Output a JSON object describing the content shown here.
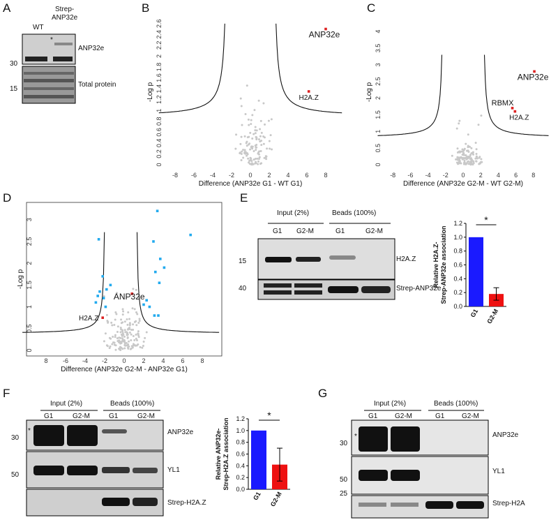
{
  "panels": {
    "A": {
      "label": "A",
      "lanes": [
        "WT",
        "Strep-\nANP32e"
      ],
      "mw": [
        "30",
        "15"
      ],
      "rows": [
        "ANP32e",
        "Total protein"
      ],
      "asterisk": "*"
    },
    "B": {
      "label": "B",
      "xlabel": "Difference (ANP32e G1 - WT G1)",
      "ylabel": "-Log p",
      "xticks": [
        "-8",
        "-6",
        "-4",
        "-2",
        "0",
        "2",
        "4",
        "6",
        "8"
      ],
      "yticks": [
        "0",
        "0.2",
        "0.4",
        "0.6",
        "0.8",
        "1",
        "1.2",
        "1.4",
        "1.6",
        "1.8",
        "2",
        "2.2",
        "2.4",
        "2.6"
      ],
      "highlights": [
        {
          "name": "ANP32e",
          "x": 8,
          "y": 2.5
        },
        {
          "name": "H2A.Z",
          "x": 6.2,
          "y": 1.35
        }
      ]
    },
    "C": {
      "label": "C",
      "xlabel": "Difference (ANP32e G2-M - WT G2-M)",
      "ylabel": "-Log p",
      "xticks": [
        "-8",
        "-6",
        "-4",
        "-2",
        "0",
        "2",
        "4",
        "6",
        "8"
      ],
      "yticks": [
        "0",
        "0.5",
        "1",
        "1.5",
        "2",
        "2.5",
        "3",
        "3.5",
        "4"
      ],
      "highlights": [
        {
          "name": "ANP32e",
          "x": 8.1,
          "y": 2.8
        },
        {
          "name": "RBMX",
          "x": 5.6,
          "y": 1.7
        },
        {
          "name": "H2A.Z",
          "x": 5.9,
          "y": 1.6
        }
      ]
    },
    "D": {
      "label": "D",
      "xlabel": "Difference (ANP32e G2-M - ANP32e G1)",
      "ylabel": "-Log p",
      "xticks": [
        "8",
        "-6",
        "-4",
        "-2",
        "0",
        "2",
        "4",
        "6",
        "8"
      ],
      "yticks": [
        "0",
        "0.5",
        "1",
        "1.5",
        "2",
        "2.5",
        "3"
      ],
      "highlights": [
        {
          "name": "ANP32e",
          "x": 0.8,
          "y": 1.3
        },
        {
          "name": "H2A.Z",
          "x": -2.2,
          "y": 0.75
        }
      ]
    },
    "E": {
      "label": "E",
      "groups": [
        "Input (2%)",
        "Beads (100%)"
      ],
      "lanes": [
        "G1",
        "G2-M",
        "G1",
        "G2-M"
      ],
      "mw": [
        "15",
        "40"
      ],
      "rows": [
        "H2A.Z",
        "Strep-ANP32e"
      ]
    },
    "F": {
      "label": "F",
      "groups": [
        "Input (2%)",
        "Beads (100%)"
      ],
      "lanes": [
        "G1",
        "G2-M",
        "G1",
        "G2-M"
      ],
      "mw": [
        "30",
        "50"
      ],
      "rows": [
        "ANP32e",
        "YL1",
        "Strep-H2A.Z"
      ],
      "asterisk": "*"
    },
    "G": {
      "label": "G",
      "groups": [
        "Input (2%)",
        "Beads (100%)"
      ],
      "lanes": [
        "G1",
        "G2-M",
        "G1",
        "G2-M"
      ],
      "mw": [
        "30",
        "50",
        "25"
      ],
      "rows": [
        "ANP32e",
        "YL1",
        "Strep-H2A"
      ],
      "asterisk": "*"
    }
  },
  "chart_data": [
    {
      "id": "E-bar",
      "type": "bar",
      "categories": [
        "G1",
        "G2-M"
      ],
      "values": [
        1.0,
        0.18
      ],
      "errors": [
        0,
        0.09
      ],
      "colors": [
        "#1a1aff",
        "#ee1111"
      ],
      "ylabel": "Relative H2A.Z-\nStrep-ANP32e association",
      "ylim": [
        0,
        1.2
      ],
      "yticks": [
        "0.0",
        "0.2",
        "0.4",
        "0.6",
        "0.8",
        "1.0",
        "1.2"
      ],
      "significance": "*"
    },
    {
      "id": "F-bar",
      "type": "bar",
      "categories": [
        "G1",
        "G2-M"
      ],
      "values": [
        1.0,
        0.42
      ],
      "errors": [
        0,
        0.28
      ],
      "colors": [
        "#1a1aff",
        "#ee1111"
      ],
      "ylabel": "Relative ANP32e-\nStrep-H2A.Z association",
      "ylim": [
        0,
        1.2
      ],
      "yticks": [
        "0.0",
        "0.2",
        "0.4",
        "0.6",
        "0.8",
        "1.0",
        "1.2"
      ],
      "significance": "*"
    }
  ]
}
